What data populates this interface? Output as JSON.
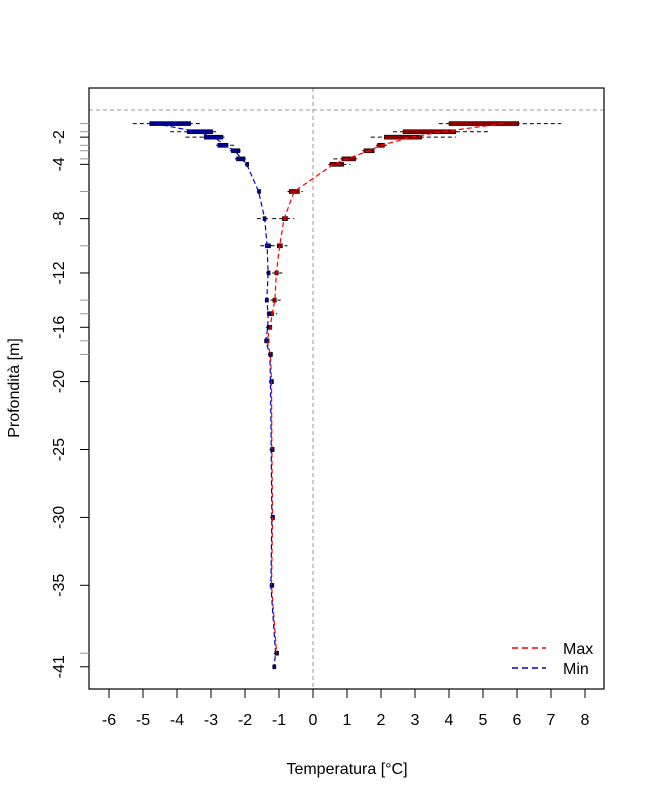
{
  "chart_data": {
    "type": "line",
    "title": "",
    "xlabel": "Temperatura [°C]",
    "ylabel": "Profondità [m]",
    "xlim": [
      -6.6,
      8.6
    ],
    "ylim": [
      -42,
      1.6
    ],
    "x_ticks": [
      "-6",
      "-5",
      "-4",
      "-3",
      "-2",
      "-1",
      "0",
      "1",
      "2",
      "3",
      "4",
      "5",
      "6",
      "7",
      "8"
    ],
    "y_ticks": [
      -1,
      -1.6,
      -2,
      -2.6,
      -3,
      -3.6,
      -4,
      -6,
      -8,
      -10,
      -12,
      -14,
      -15,
      -16,
      -17,
      -18,
      -20,
      -25,
      -30,
      -35,
      -40,
      -41
    ],
    "y_tick_labels": [
      "-2",
      "-4",
      "-8",
      "-12",
      "-16",
      "-20",
      "-25",
      "-30",
      "-35",
      "-41"
    ],
    "reference_lines": {
      "x": 0,
      "y": 0
    },
    "grid": false,
    "legend_position": "bottom-right",
    "series": [
      {
        "name": "Max",
        "color": "#ff0000",
        "box_color": "#8b0000",
        "depth": [
          -1,
          -1.6,
          -2,
          -2.6,
          -3,
          -3.6,
          -4,
          -6,
          -8,
          -10,
          -12,
          -14,
          -15,
          -16,
          -17,
          -18,
          -20,
          -25,
          -30,
          -35,
          -40
        ],
        "mean": [
          5.6,
          3.8,
          2.9,
          2.0,
          1.65,
          1.0,
          0.6,
          -0.55,
          -0.85,
          -0.98,
          -1.08,
          -1.12,
          -1.2,
          -1.26,
          -1.35,
          -1.25,
          -1.22,
          -1.21,
          -1.19,
          -1.22,
          -1.07
        ],
        "low": [
          3.7,
          2.35,
          1.7,
          1.85,
          1.45,
          0.6,
          0.45,
          -0.75,
          -1.2,
          -1.25,
          -1.2,
          -1.25,
          -1.3,
          -1.35,
          -1.42,
          -1.32,
          -1.28,
          -1.25,
          -1.24,
          -1.26,
          -1.12
        ],
        "q1": [
          4.0,
          2.65,
          2.1,
          1.9,
          1.5,
          0.85,
          0.5,
          -0.7,
          -0.9,
          -1.05,
          -1.12,
          -1.18,
          -1.25,
          -1.3,
          -1.38,
          -1.28,
          -1.25,
          -1.23,
          -1.22,
          -1.24,
          -1.1
        ],
        "q3": [
          6.05,
          4.2,
          3.2,
          2.1,
          1.8,
          1.25,
          0.9,
          -0.4,
          -0.75,
          -0.9,
          -1.02,
          -1.08,
          -1.18,
          -1.24,
          -1.32,
          -1.22,
          -1.2,
          -1.19,
          -1.17,
          -1.2,
          -1.04
        ],
        "high": [
          7.3,
          5.2,
          4.2,
          2.2,
          1.85,
          1.3,
          1.1,
          -0.3,
          -0.55,
          -0.75,
          -0.9,
          -0.95,
          -1.05,
          -1.2,
          -1.3,
          -1.2,
          -1.18,
          -1.17,
          -1.15,
          -1.18,
          -1.02
        ]
      },
      {
        "name": "Min",
        "color": "#0000cd",
        "box_color": "#00008b",
        "depth": [
          -1,
          -1.6,
          -2,
          -2.6,
          -3,
          -3.6,
          -4,
          -6,
          -8,
          -10,
          -12,
          -14,
          -15,
          -16,
          -17,
          -18,
          -20,
          -25,
          -30,
          -35,
          -40,
          -41
        ],
        "mean": [
          -4.65,
          -3.4,
          -2.9,
          -2.6,
          -2.3,
          -2.1,
          -1.95,
          -1.6,
          -1.42,
          -1.35,
          -1.32,
          -1.36,
          -1.32,
          -1.33,
          -1.39,
          -1.27,
          -1.25,
          -1.23,
          -1.21,
          -1.24,
          -1.1,
          -1.15
        ],
        "low": [
          -5.3,
          -4.2,
          -3.75,
          -2.85,
          -2.45,
          -2.3,
          -2.0,
          -1.65,
          -1.65,
          -1.55,
          -1.38,
          -1.42,
          -1.36,
          -1.38,
          -1.44,
          -1.32,
          -1.3,
          -1.28,
          -1.26,
          -1.28,
          -1.15,
          -1.2
        ],
        "q1": [
          -4.8,
          -3.7,
          -3.2,
          -2.8,
          -2.4,
          -2.25,
          -1.98,
          -1.63,
          -1.47,
          -1.4,
          -1.35,
          -1.4,
          -1.34,
          -1.35,
          -1.42,
          -1.3,
          -1.27,
          -1.25,
          -1.23,
          -1.26,
          -1.12,
          -1.18
        ],
        "q3": [
          -3.6,
          -2.95,
          -2.65,
          -2.5,
          -2.15,
          -2.0,
          -1.9,
          -1.57,
          -1.38,
          -1.25,
          -1.28,
          -1.32,
          -1.28,
          -1.3,
          -1.36,
          -1.24,
          -1.22,
          -1.21,
          -1.18,
          -1.21,
          -1.06,
          -1.12
        ],
        "high": [
          -3.3,
          -2.85,
          -2.6,
          -2.3,
          -2.1,
          -1.95,
          -1.88,
          -1.55,
          -1.3,
          -1.2,
          -1.25,
          -1.3,
          -1.26,
          -1.28,
          -1.34,
          -1.22,
          -1.2,
          -1.19,
          -1.16,
          -1.19,
          -1.04,
          -1.1
        ]
      }
    ]
  }
}
